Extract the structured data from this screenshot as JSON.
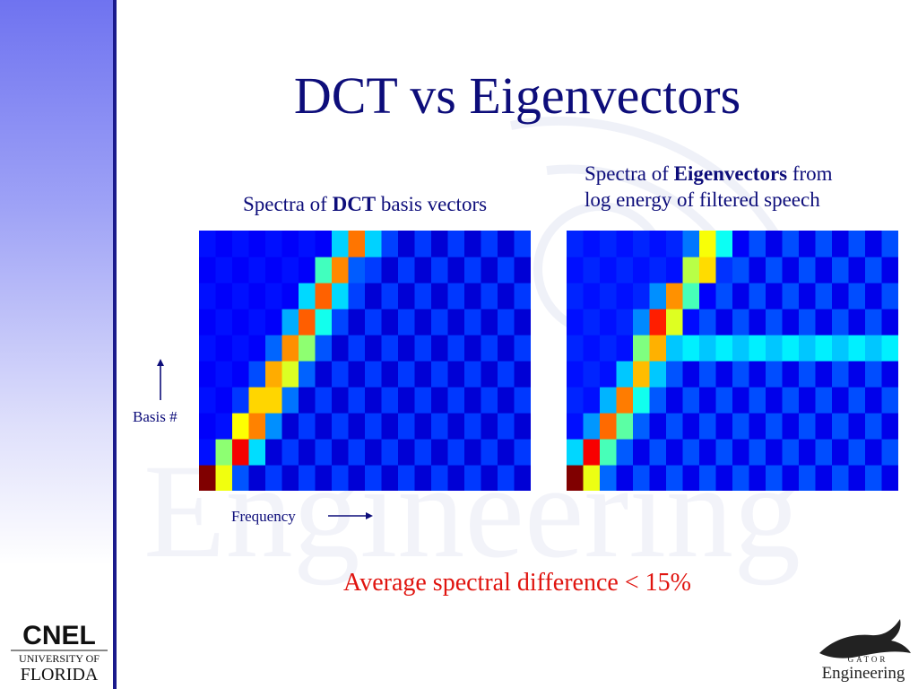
{
  "slide": {
    "title": "DCT vs Eigenvectors",
    "caption_left": {
      "prefix": "Spectra of ",
      "bold": "DCT",
      "suffix": " basis vectors"
    },
    "caption_right": {
      "prefix": "Spectra of ",
      "bold": "Eigenvectors",
      "suffix": " from",
      "line2": "log energy of filtered speech"
    },
    "y_axis_label": "Basis #",
    "x_axis_label": "Frequency",
    "highlight": "Average spectral difference < 15%"
  },
  "logos": {
    "left": {
      "line1": "CNEL",
      "line2": "UNIVERSITY OF",
      "line3": "FLORIDA"
    },
    "right": {
      "line1": "GATOR",
      "line2": "Engineering"
    }
  },
  "watermark": {
    "text": "Engineering"
  },
  "colors": {
    "title": "#0d0d7a",
    "highlight": "#e0140f",
    "sidebar_top": "#6f73f0",
    "sidebar_line": "#1a1a8c"
  },
  "chart_data": [
    {
      "type": "heatmap",
      "title": "Spectra of DCT basis vectors",
      "xlabel": "Frequency",
      "ylabel": "Basis #",
      "colormap": "jet",
      "rows": 10,
      "cols": 20,
      "ridge_cols_bottom_to_top": [
        0.2,
        1.8,
        2.6,
        3.5,
        4.4,
        5.3,
        6.1,
        7.0,
        7.8,
        9.0
      ],
      "ridge_peak_bottom_to_top": [
        1.0,
        0.8,
        0.75,
        0.72,
        0.7,
        0.68,
        0.67,
        0.66,
        0.65,
        0.64
      ],
      "background_level": 0.12
    },
    {
      "type": "heatmap",
      "title": "Spectra of Eigenvectors from log energy of filtered speech",
      "xlabel": "Frequency",
      "ylabel": "Basis #",
      "colormap": "jet",
      "rows": 10,
      "cols": 20,
      "ridge_cols_bottom_to_top": [
        0.2,
        1.1,
        2.2,
        3.1,
        4.0,
        4.7,
        5.3,
        6.2,
        7.6,
        8.2
      ],
      "ridge_peak_bottom_to_top": [
        0.95,
        0.75,
        0.66,
        0.62,
        0.55,
        0.62,
        0.78,
        0.62,
        0.62,
        0.5
      ],
      "background_level": 0.14,
      "band_row_from_bottom": 5,
      "band_level": 0.36
    }
  ]
}
